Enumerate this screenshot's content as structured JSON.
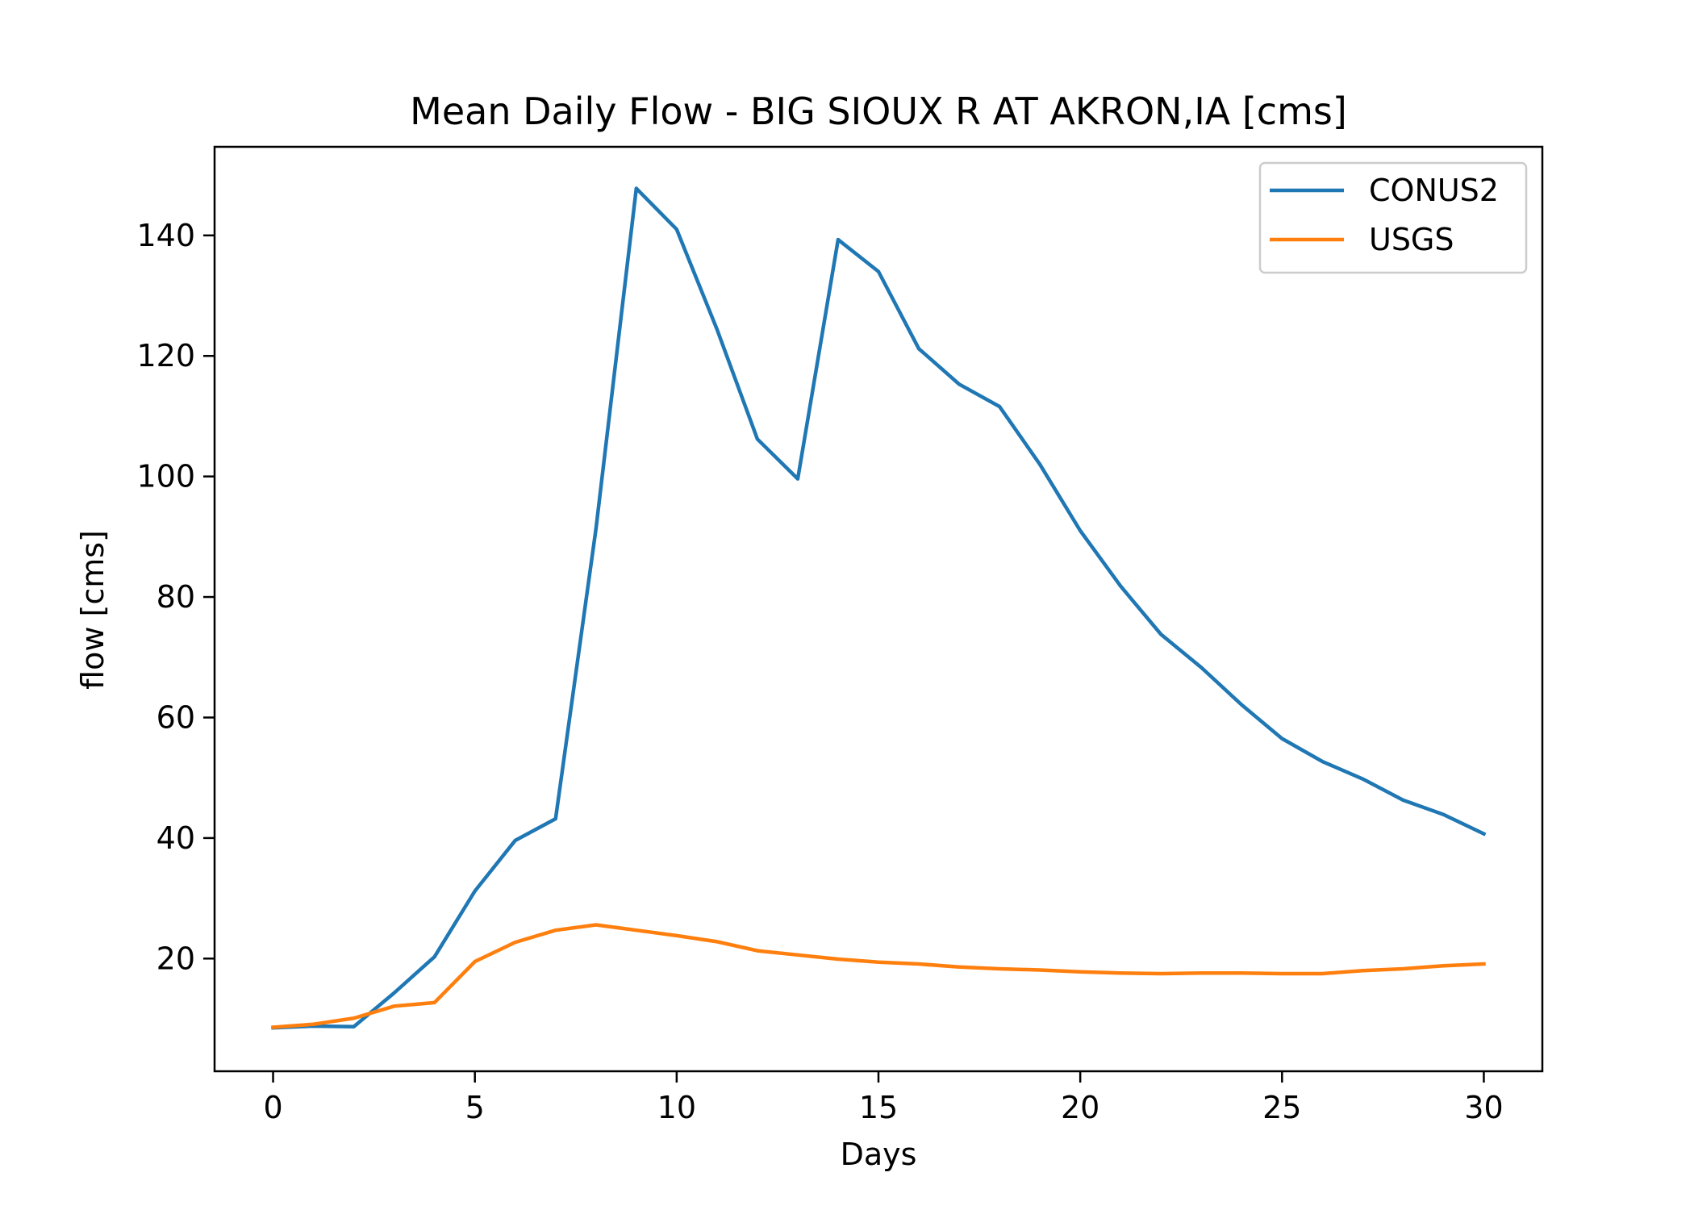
{
  "chart_data": {
    "type": "line",
    "title": "Mean Daily Flow - BIG SIOUX R AT AKRON,IA [cms]",
    "xlabel": "Days",
    "ylabel": "flow [cms]",
    "xlim": [
      -1.45,
      31.45
    ],
    "ylim": [
      1.3,
      154.7
    ],
    "xticks": [
      0,
      5,
      10,
      15,
      20,
      25,
      30
    ],
    "yticks": [
      20,
      40,
      60,
      80,
      100,
      120,
      140
    ],
    "grid": false,
    "legend": "top-right",
    "x": [
      0,
      1,
      2,
      3,
      4,
      5,
      6,
      7,
      8,
      9,
      10,
      11,
      12,
      13,
      14,
      15,
      16,
      17,
      18,
      19,
      20,
      21,
      22,
      23,
      24,
      25,
      26,
      27,
      28,
      29,
      30
    ],
    "series": [
      {
        "name": "CONUS2",
        "color": "#1f77b4",
        "values": [
          8.5,
          8.8,
          8.7,
          14.3,
          20.3,
          31.2,
          39.6,
          43.2,
          91.3,
          147.8,
          141.0,
          124.4,
          106.2,
          99.6,
          139.3,
          134.0,
          121.2,
          115.3,
          111.6,
          102.0,
          91.0,
          81.8,
          73.8,
          68.3,
          62.1,
          56.5,
          52.7,
          49.8,
          46.3,
          43.9,
          40.7
        ]
      },
      {
        "name": "USGS",
        "color": "#ff7f0e",
        "values": [
          8.6,
          9.1,
          10.1,
          12.1,
          12.7,
          19.5,
          22.7,
          24.7,
          25.6,
          24.7,
          23.8,
          22.8,
          21.3,
          20.6,
          19.9,
          19.4,
          19.1,
          18.6,
          18.3,
          18.1,
          17.8,
          17.6,
          17.5,
          17.6,
          17.6,
          17.5,
          17.5,
          18.0,
          18.3,
          18.8,
          19.1
        ]
      }
    ]
  }
}
